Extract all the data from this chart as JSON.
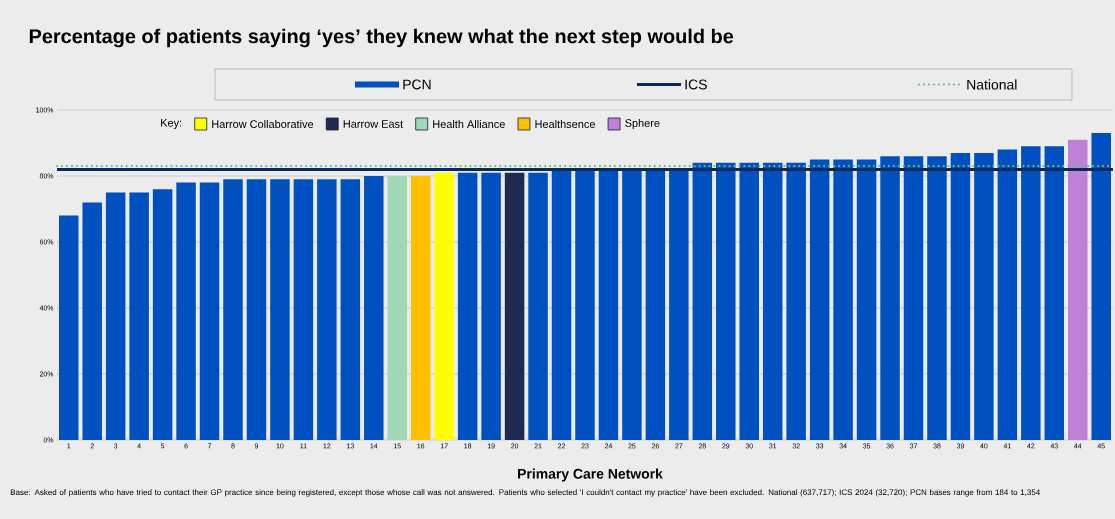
{
  "chart_data": {
    "type": "bar",
    "title": "Percentage of patients saying ‘yes’ they knew what the next step would be",
    "xlabel": "Primary Care Network",
    "legend_title": "Key:",
    "categories": [
      "1",
      "2",
      "3",
      "4",
      "5",
      "6",
      "7",
      "8",
      "9",
      "10",
      "11",
      "12",
      "13",
      "14",
      "15",
      "16",
      "17",
      "18",
      "19",
      "20",
      "21",
      "22",
      "23",
      "24",
      "25",
      "26",
      "27",
      "28",
      "29",
      "30",
      "31",
      "32",
      "33",
      "34",
      "35",
      "36",
      "37",
      "38",
      "39",
      "40",
      "41",
      "42",
      "43",
      "44",
      "45"
    ],
    "series": [
      {
        "name": "PCN",
        "color": "#0050c0",
        "values": [
          68,
          72,
          75,
          75,
          76,
          78,
          78,
          79,
          79,
          79,
          79,
          79,
          79,
          80,
          null,
          null,
          null,
          81,
          81,
          null,
          81,
          82,
          82,
          82,
          82,
          82,
          82,
          84,
          84,
          84,
          84,
          84,
          85,
          85,
          85,
          86,
          86,
          86,
          87,
          87,
          88,
          89,
          89,
          null,
          93
        ]
      },
      {
        "name": "Harrow Collaborative",
        "color": "#ffff00",
        "values": [
          null,
          null,
          null,
          null,
          null,
          null,
          null,
          null,
          null,
          null,
          null,
          null,
          null,
          null,
          null,
          null,
          81,
          null,
          null,
          null,
          null,
          null,
          null,
          null,
          null,
          null,
          null,
          null,
          null,
          null,
          null,
          null,
          null,
          null,
          null,
          null,
          null,
          null,
          null,
          null,
          null,
          null,
          null,
          null,
          null
        ]
      },
      {
        "name": "Harrow East",
        "color": "#1f2a50",
        "values": [
          null,
          null,
          null,
          null,
          null,
          null,
          null,
          null,
          null,
          null,
          null,
          null,
          null,
          null,
          null,
          null,
          null,
          null,
          null,
          81,
          null,
          null,
          null,
          null,
          null,
          null,
          null,
          null,
          null,
          null,
          null,
          null,
          null,
          null,
          null,
          null,
          null,
          null,
          null,
          null,
          null,
          null,
          null,
          null,
          null
        ]
      },
      {
        "name": "Health Alliance",
        "color": "#a0d8b8",
        "values": [
          null,
          null,
          null,
          null,
          null,
          null,
          null,
          null,
          null,
          null,
          null,
          null,
          null,
          null,
          80,
          null,
          null,
          null,
          null,
          null,
          null,
          null,
          null,
          null,
          null,
          null,
          null,
          null,
          null,
          null,
          null,
          null,
          null,
          null,
          null,
          null,
          null,
          null,
          null,
          null,
          null,
          null,
          null,
          null,
          null
        ]
      },
      {
        "name": "Healthsence",
        "color": "#ffc000",
        "values": [
          null,
          null,
          null,
          null,
          null,
          null,
          null,
          null,
          null,
          null,
          null,
          null,
          null,
          null,
          null,
          80,
          null,
          null,
          null,
          null,
          null,
          null,
          null,
          null,
          null,
          null,
          null,
          null,
          null,
          null,
          null,
          null,
          null,
          null,
          null,
          null,
          null,
          null,
          null,
          null,
          null,
          null,
          null,
          null,
          null
        ]
      },
      {
        "name": "Sphere",
        "color": "#c080d8",
        "values": [
          null,
          null,
          null,
          null,
          null,
          null,
          null,
          null,
          null,
          null,
          null,
          null,
          null,
          null,
          null,
          null,
          null,
          null,
          null,
          null,
          null,
          null,
          null,
          null,
          null,
          null,
          null,
          null,
          null,
          null,
          null,
          null,
          null,
          null,
          null,
          null,
          null,
          null,
          null,
          null,
          null,
          null,
          null,
          91,
          null
        ]
      }
    ],
    "ref_lines": [
      {
        "axis": "y",
        "value": 82,
        "label": "ICS",
        "color": "#0a2a5c",
        "line_style": "solid"
      },
      {
        "axis": "y",
        "value": 83,
        "label": "National",
        "color": "#5cc080",
        "line_style": "dotted"
      }
    ],
    "ylim": [
      0,
      100
    ],
    "yticks": [
      {
        "value": 0,
        "label": "0%"
      },
      {
        "value": 20,
        "label": "20%"
      },
      {
        "value": 40,
        "label": "40%"
      },
      {
        "value": 60,
        "label": "60%"
      },
      {
        "value": 80,
        "label": "80%"
      },
      {
        "value": 100,
        "label": "100%"
      }
    ],
    "grid": "y",
    "legend": "top",
    "annotations": [
      "Base: Asked of patients who have tried to contact their GP practice since being registered, except those whose call was not answered. Patients who selected 'I couldn't contact my practice' have been excluded. National (637,717); ICS 2024 (32,720); PCN bases range from 184 to 1,354"
    ]
  }
}
